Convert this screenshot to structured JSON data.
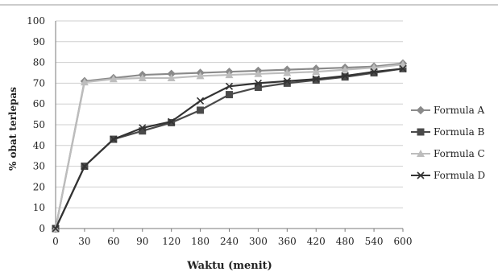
{
  "chart_data": {
    "type": "line",
    "title": "",
    "xlabel": "Waktu (menit)",
    "ylabel": "% obat terlepas",
    "x": [
      "0",
      "30",
      "60",
      "90",
      "120",
      "180",
      "240",
      "300",
      "360",
      "420",
      "480",
      "540",
      "600"
    ],
    "ylim": [
      0,
      100
    ],
    "yticks": [
      "0",
      "10",
      "20",
      "30",
      "40",
      "50",
      "60",
      "70",
      "80",
      "90",
      "100"
    ],
    "grid": true,
    "legend_position": "right",
    "series": [
      {
        "name": "Formula A",
        "marker": "diamond",
        "color": "#8a8a8a",
        "values": [
          0,
          71,
          72.5,
          74,
          74.5,
          75,
          75.5,
          76,
          76.5,
          77,
          77.5,
          78,
          79.5
        ]
      },
      {
        "name": "Formula B",
        "marker": "square",
        "color": "#4a4a4a",
        "values": [
          0,
          30,
          43,
          47,
          51,
          57,
          64.5,
          68,
          70,
          71.5,
          73,
          75,
          77
        ]
      },
      {
        "name": "Formula C",
        "marker": "triangle",
        "color": "#bdbdbd",
        "values": [
          0,
          70.5,
          72,
          72.5,
          72.5,
          73.5,
          74,
          74.5,
          75,
          75.5,
          76.5,
          77.5,
          79
        ]
      },
      {
        "name": "Formula D",
        "marker": "x",
        "color": "#333333",
        "values": [
          0,
          30,
          43,
          48.5,
          51.5,
          61.5,
          68.5,
          70,
          71,
          72,
          73.5,
          75.5,
          77
        ]
      }
    ]
  }
}
